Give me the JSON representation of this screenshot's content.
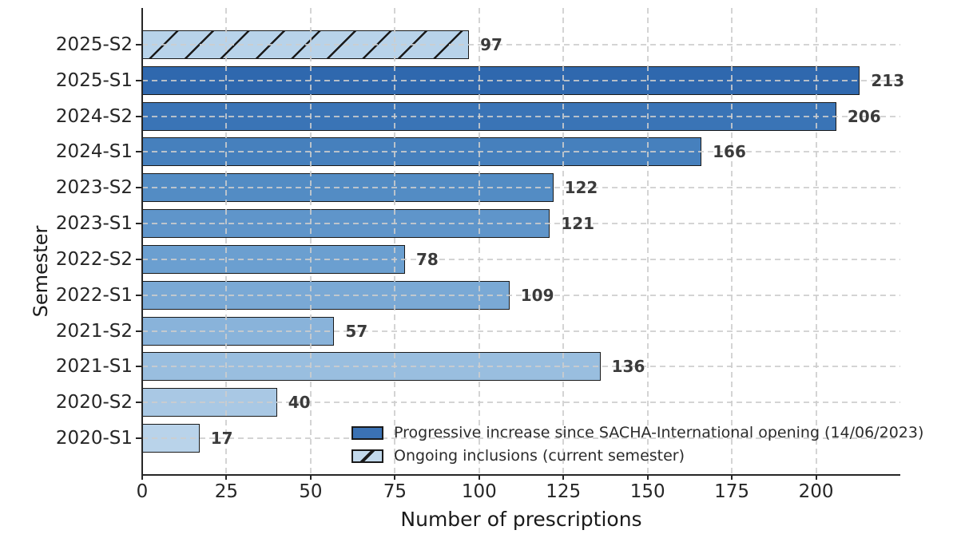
{
  "chart_data": {
    "type": "bar",
    "orientation": "horizontal",
    "title": "",
    "xlabel": "Number of prescriptions",
    "ylabel": "Semester",
    "xlim": [
      0,
      225
    ],
    "xticks": [
      0,
      25,
      50,
      75,
      100,
      125,
      150,
      175,
      200
    ],
    "grid": "both, dashed, drawn over bars",
    "categories": [
      "2025-S2",
      "2025-S1",
      "2024-S2",
      "2024-S1",
      "2023-S2",
      "2023-S1",
      "2022-S2",
      "2022-S1",
      "2021-S2",
      "2021-S1",
      "2020-S2",
      "2020-S1"
    ],
    "values": [
      97,
      213,
      206,
      166,
      122,
      121,
      78,
      109,
      57,
      136,
      40,
      17
    ],
    "value_labels": [
      "97",
      "213",
      "206",
      "166",
      "122",
      "121",
      "78",
      "109",
      "57",
      "136",
      "40",
      "17"
    ],
    "bar_colors": [
      "#b8d3ea",
      "#2f68ae",
      "#3a74b6",
      "#4680bd",
      "#538cc4",
      "#5f95ca",
      "#6b9fd0",
      "#7aa9d5",
      "#89b3da",
      "#99bedf",
      "#a9c8e4",
      "#b9d3ea"
    ],
    "bar_hatched": [
      true,
      false,
      false,
      false,
      false,
      false,
      false,
      false,
      false,
      false,
      false,
      false
    ],
    "bar_edge_color": "#1a1a1a",
    "gridline_color": "#cdcdcd",
    "legend": {
      "position": "lower right, inside plot",
      "entries": [
        {
          "label": "Progressive increase since SACHA-International opening (14/06/2023)",
          "color": "#3b72b4",
          "hatched": false
        },
        {
          "label": "Ongoing inclusions (current semester)",
          "color": "#c2d9ec",
          "hatched": true
        }
      ]
    }
  }
}
